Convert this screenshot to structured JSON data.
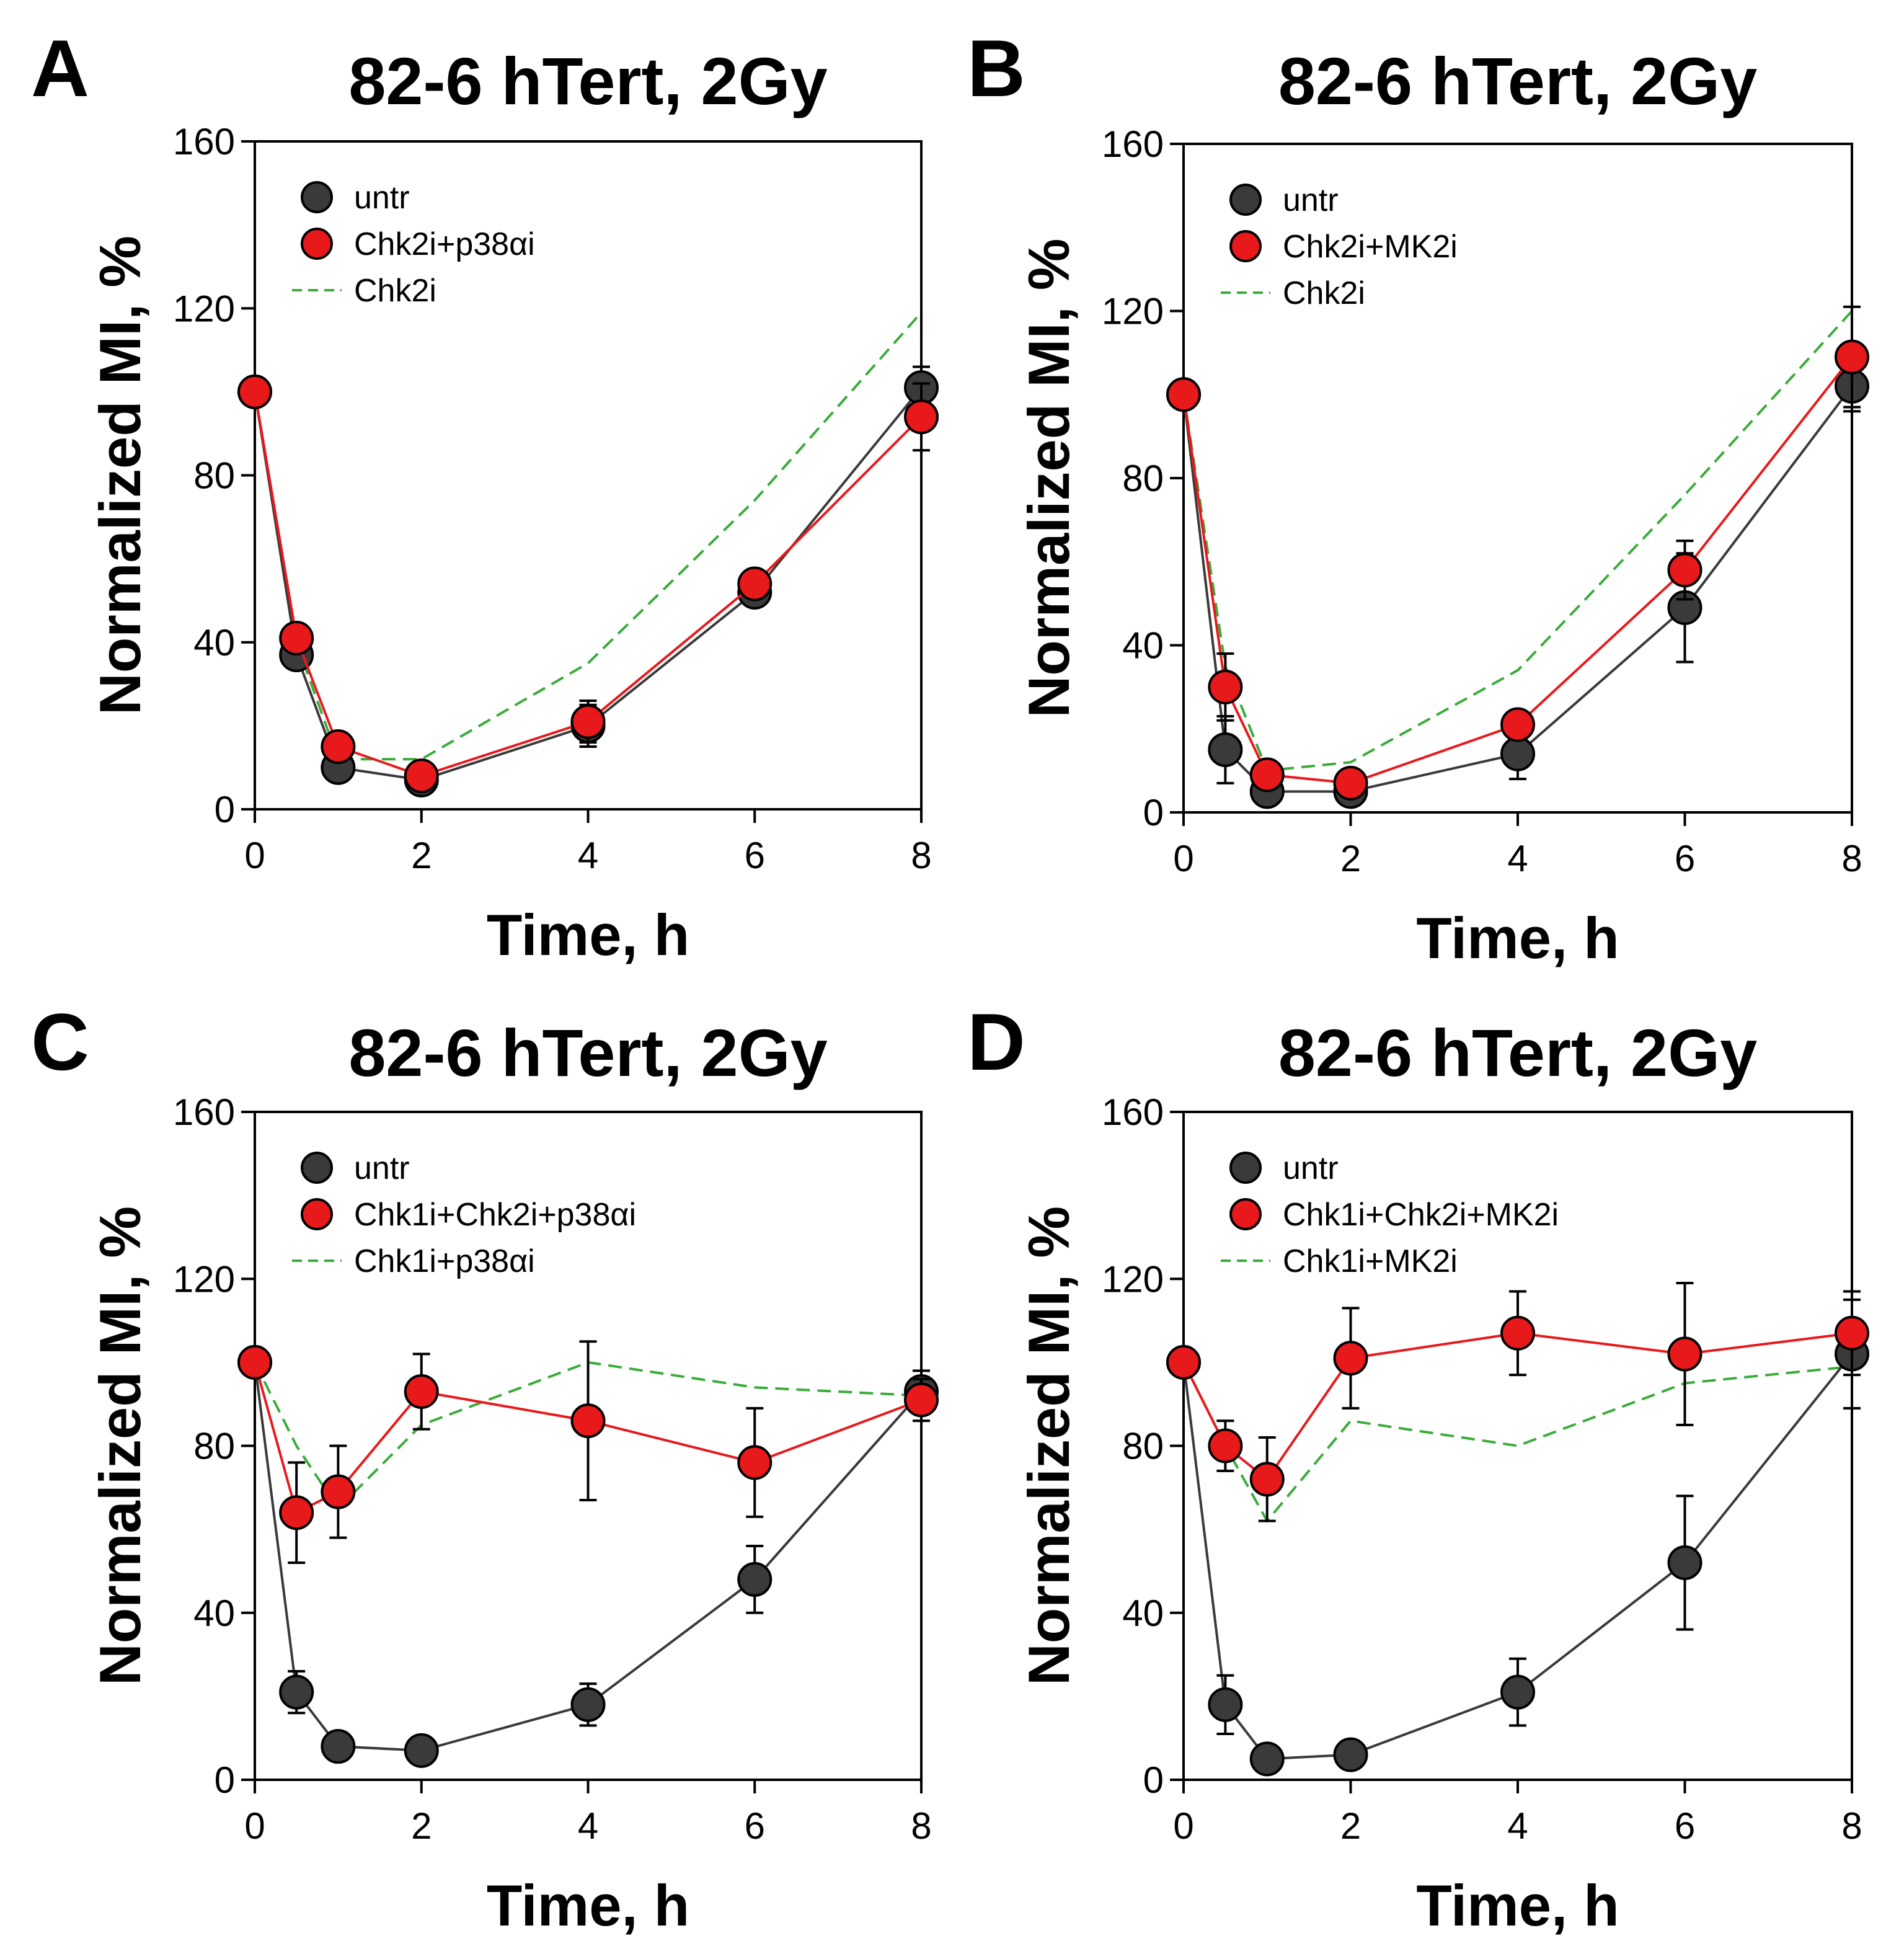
{
  "figure": {
    "panels": [
      "A",
      "B",
      "C",
      "D"
    ]
  },
  "colors": {
    "untr": "#3a3a3a",
    "treated": "#e8191b",
    "reference": "#3aac3a",
    "axis": "#000000"
  },
  "chart_data": [
    {
      "panel": "A",
      "type": "line",
      "title": "82-6 hTert, 2Gy",
      "xlabel": "Time, h",
      "ylabel": "Normalized MI, %",
      "xlim": [
        0,
        8
      ],
      "ylim": [
        0,
        160
      ],
      "xticks": [
        "0",
        "2",
        "4",
        "6",
        "8"
      ],
      "yticks": [
        "0",
        "40",
        "80",
        "120",
        "160"
      ],
      "legend": "top-left",
      "series": [
        {
          "name": "untr",
          "style": "untr",
          "x": [
            0,
            0.5,
            1,
            2,
            4,
            6,
            8
          ],
          "values": [
            100,
            37,
            10,
            7,
            20,
            52,
            101
          ],
          "errors": [
            0,
            2,
            2,
            2,
            5,
            2,
            5
          ]
        },
        {
          "name": "Chk2i+p38αi",
          "style": "treated",
          "x": [
            0,
            0.5,
            1,
            2,
            4,
            6,
            8
          ],
          "values": [
            100,
            41,
            15,
            8,
            21,
            54,
            94
          ],
          "errors": [
            0,
            2,
            2,
            2,
            5,
            2,
            8
          ]
        },
        {
          "name": "Chk2i",
          "style": "reference",
          "x": [
            0,
            0.5,
            1,
            2,
            4,
            6,
            8
          ],
          "values": [
            100,
            40,
            12,
            12,
            35,
            74,
            119
          ]
        }
      ]
    },
    {
      "panel": "B",
      "type": "line",
      "title": "82-6 hTert, 2Gy",
      "xlabel": "Time, h",
      "ylabel": "Normalized MI, %",
      "xlim": [
        0,
        8
      ],
      "ylim": [
        0,
        160
      ],
      "xticks": [
        "0",
        "2",
        "4",
        "6",
        "8"
      ],
      "yticks": [
        "0",
        "40",
        "80",
        "120",
        "160"
      ],
      "legend": "top-left",
      "series": [
        {
          "name": "untr",
          "style": "untr",
          "x": [
            0,
            0.5,
            1,
            2,
            4,
            6,
            8
          ],
          "values": [
            100,
            15,
            5,
            5,
            14,
            49,
            102
          ],
          "errors": [
            0,
            8,
            2,
            2,
            6,
            13,
            6
          ]
        },
        {
          "name": "Chk2i+MK2i",
          "style": "treated",
          "x": [
            0,
            0.5,
            1,
            2,
            4,
            6,
            8
          ],
          "values": [
            100,
            30,
            9,
            7,
            21,
            58,
            109
          ],
          "errors": [
            0,
            8,
            2,
            2,
            2,
            7,
            12
          ]
        },
        {
          "name": "Chk2i",
          "style": "reference",
          "x": [
            0,
            0.5,
            1,
            2,
            4,
            6,
            8
          ],
          "values": [
            100,
            35,
            10,
            12,
            34,
            76,
            120
          ]
        }
      ]
    },
    {
      "panel": "C",
      "type": "line",
      "title": "82-6 hTert, 2Gy",
      "xlabel": "Time, h",
      "ylabel": "Normalized MI, %",
      "xlim": [
        0,
        8
      ],
      "ylim": [
        0,
        160
      ],
      "xticks": [
        "0",
        "2",
        "4",
        "6",
        "8"
      ],
      "yticks": [
        "0",
        "40",
        "80",
        "120",
        "160"
      ],
      "legend": "top-left",
      "series": [
        {
          "name": "untr",
          "style": "untr",
          "x": [
            0,
            0.5,
            1,
            2,
            4,
            6,
            8
          ],
          "values": [
            100,
            21,
            8,
            7,
            18,
            48,
            93
          ],
          "errors": [
            0,
            5,
            2,
            2,
            5,
            8,
            5
          ]
        },
        {
          "name": "Chk1i+Chk2i+p38αi",
          "style": "treated",
          "x": [
            0,
            0.5,
            1,
            2,
            4,
            6,
            8
          ],
          "values": [
            100,
            64,
            69,
            93,
            86,
            76,
            91
          ],
          "errors": [
            0,
            12,
            11,
            9,
            19,
            13,
            5
          ]
        },
        {
          "name": "Chk1i+p38αi",
          "style": "reference",
          "x": [
            0,
            0.5,
            1,
            2,
            4,
            6,
            8
          ],
          "values": [
            100,
            80,
            65,
            85,
            100,
            94,
            92
          ]
        }
      ]
    },
    {
      "panel": "D",
      "type": "line",
      "title": "82-6 hTert, 2Gy",
      "xlabel": "Time, h",
      "ylabel": "Normalized MI, %",
      "xlim": [
        0,
        8
      ],
      "ylim": [
        0,
        160
      ],
      "xticks": [
        "0",
        "2",
        "4",
        "6",
        "8"
      ],
      "yticks": [
        "0",
        "40",
        "80",
        "120",
        "160"
      ],
      "legend": "top-left",
      "series": [
        {
          "name": "untr",
          "style": "untr",
          "x": [
            0,
            0.5,
            1,
            2,
            4,
            6,
            8
          ],
          "values": [
            100,
            18,
            5,
            6,
            21,
            52,
            102
          ],
          "errors": [
            0,
            7,
            2,
            2,
            8,
            16,
            13
          ]
        },
        {
          "name": "Chk1i+Chk2i+MK2i",
          "style": "treated",
          "x": [
            0,
            0.5,
            1,
            2,
            4,
            6,
            8
          ],
          "values": [
            100,
            80,
            72,
            101,
            107,
            102,
            107
          ],
          "errors": [
            0,
            6,
            10,
            12,
            10,
            17,
            10
          ]
        },
        {
          "name": "Chk1i+MK2i",
          "style": "reference",
          "x": [
            0,
            0.5,
            1,
            2,
            4,
            6,
            8
          ],
          "values": [
            100,
            80,
            62,
            86,
            80,
            95,
            99
          ]
        }
      ]
    }
  ]
}
